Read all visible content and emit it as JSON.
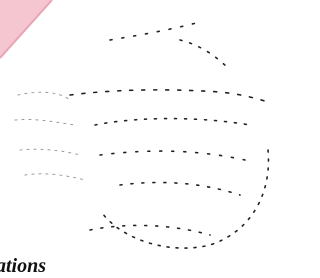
{
  "caption": "ations"
}
